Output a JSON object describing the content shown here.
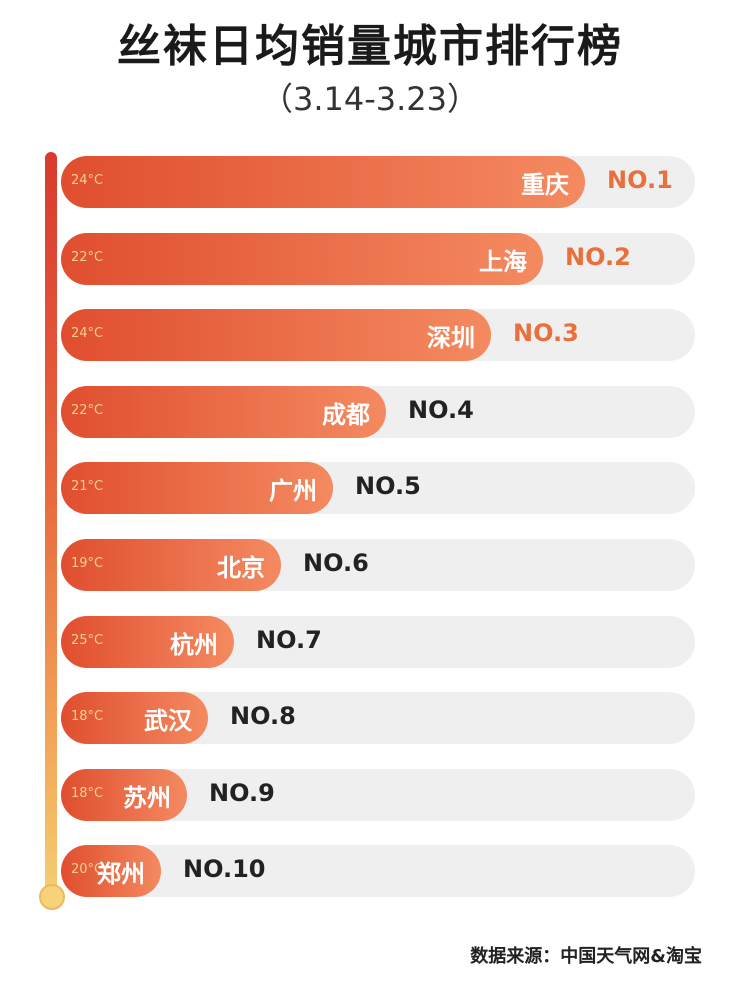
{
  "title": "丝袜日均销量城市排行榜",
  "subtitle": "（3.14-3.23）",
  "source": "数据来源：中国天气网&淘宝",
  "colors": {
    "bar_start": "#e04e2f",
    "bar_end": "#f48a60",
    "rank_top": "#e8703c",
    "rank_rest": "#222222",
    "track": "#efefef"
  },
  "chart_data": {
    "type": "bar",
    "orientation": "horizontal",
    "title": "丝袜日均销量城市排行榜",
    "subtitle": "（3.14-3.23）",
    "categories": [
      "重庆",
      "上海",
      "深圳",
      "成都",
      "广州",
      "北京",
      "杭州",
      "武汉",
      "苏州",
      "郑州"
    ],
    "ranks": [
      "NO.1",
      "NO.2",
      "NO.3",
      "NO.4",
      "NO.5",
      "NO.6",
      "NO.7",
      "NO.8",
      "NO.9",
      "NO.10"
    ],
    "temperatures": [
      "24°C",
      "22°C",
      "24°C",
      "22°C",
      "21°C",
      "19°C",
      "25°C",
      "18°C",
      "18°C",
      "20°C"
    ],
    "values": [
      10,
      9.2,
      8.2,
      6.2,
      5.2,
      4.2,
      3.3,
      2.8,
      2.4,
      1.9
    ],
    "ylim": [
      0,
      10
    ]
  }
}
